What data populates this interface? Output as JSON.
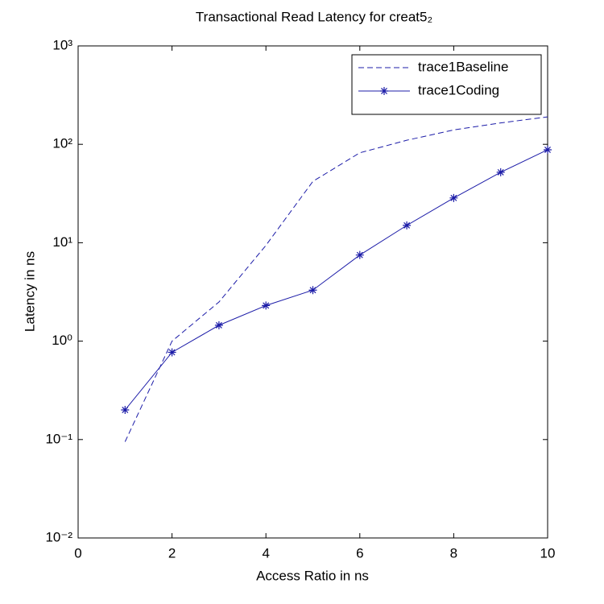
{
  "chart_data": {
    "type": "line",
    "title": "Transactional Read Latency for creat5₂",
    "xlabel": "Access Ratio in ns",
    "ylabel": "Latency in ns",
    "xlim": [
      0,
      10
    ],
    "xticks": [
      0,
      2,
      4,
      6,
      8,
      10
    ],
    "ylim": [
      0.01,
      1000
    ],
    "yscale": "log",
    "yticks": [
      {
        "value": 0.01,
        "label": "10⁻²"
      },
      {
        "value": 0.1,
        "label": "10⁻¹"
      },
      {
        "value": 1,
        "label": "10⁰"
      },
      {
        "value": 10,
        "label": "10¹"
      },
      {
        "value": 100,
        "label": "10²"
      },
      {
        "value": 1000,
        "label": "10³"
      }
    ],
    "legend": "upper right",
    "series": [
      {
        "name": "trace1Baseline",
        "color": "#1c1ca8",
        "dash": true,
        "marker": null,
        "x": [
          1,
          2,
          3,
          4,
          5,
          6,
          7,
          8,
          9,
          10
        ],
        "values": [
          0.095,
          1.0,
          2.5,
          9.4,
          42,
          82,
          110,
          140,
          165,
          190
        ]
      },
      {
        "name": "trace1Coding",
        "color": "#1c1ca8",
        "dash": false,
        "marker": "asterisk",
        "x": [
          1,
          2,
          3,
          4,
          5,
          6,
          7,
          8,
          9,
          10
        ],
        "values": [
          0.2,
          0.77,
          1.45,
          2.3,
          3.3,
          7.5,
          15,
          28.5,
          52,
          88
        ]
      }
    ]
  }
}
